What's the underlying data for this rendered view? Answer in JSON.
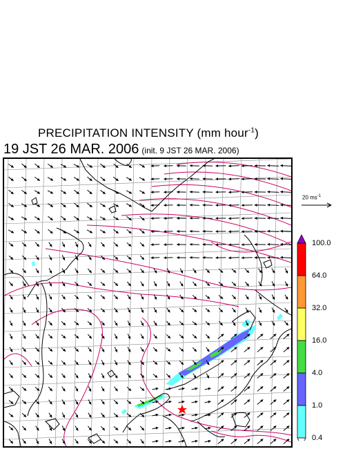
{
  "title": {
    "prefix": "PRECIPITATION INTENSITY (mm hour",
    "exponent": "-1",
    "suffix": ")"
  },
  "subtitle": {
    "main": "19 JST 26 MAR. 2006",
    "init": "(init. 9 JST 26 MAR. 2006)"
  },
  "vector_reference": {
    "label": "20 ms",
    "exponent": "-1"
  },
  "colorbar": {
    "levels": [
      "100.0",
      "64.0",
      "32.0",
      "16.0",
      "4.0",
      "1.0",
      "0.4"
    ],
    "colors": [
      "#9900cc",
      "#ff0000",
      "#ff9933",
      "#ffff66",
      "#44dd44",
      "#6666ff",
      "#66ffff",
      "#ffffff"
    ]
  },
  "map": {
    "contour_color": "#cc0066",
    "coast_color": "#000000",
    "grid_color": "#888888",
    "marker_color": "#ff0000",
    "marker_icon": "star-icon",
    "wind_arrow_icon": "arrow-icon"
  }
}
